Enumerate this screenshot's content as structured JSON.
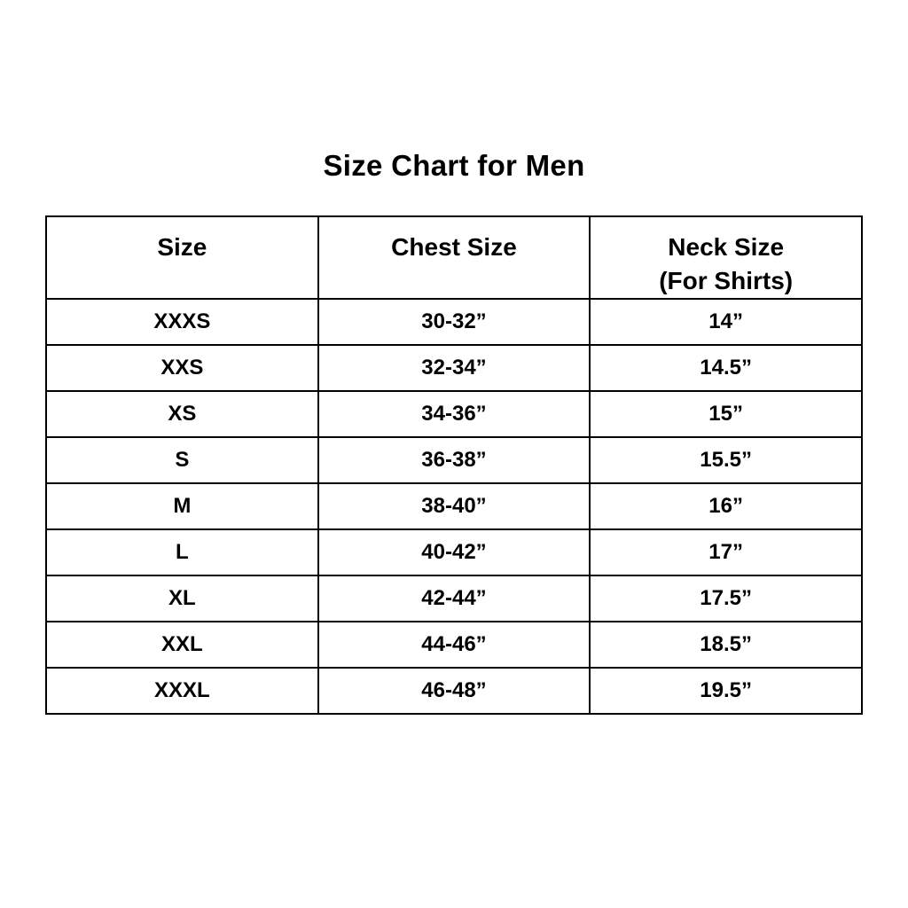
{
  "page": {
    "background_color": "#ffffff",
    "text_color": "#000000",
    "border_color": "#000000"
  },
  "title": "Size Chart for Men",
  "table": {
    "headers": [
      {
        "label": "Size",
        "sublabel": ""
      },
      {
        "label": "Chest Size",
        "sublabel": ""
      },
      {
        "label": "Neck Size",
        "sublabel": "(For Shirts)"
      }
    ]
  },
  "chart_data": {
    "type": "table",
    "title": "Size Chart for Men",
    "columns": [
      "Size",
      "Chest Size",
      "Neck Size (For Shirts)"
    ],
    "rows": [
      [
        "XXXS",
        "30-32”",
        "14”"
      ],
      [
        "XXS",
        "32-34”",
        "14.5”"
      ],
      [
        "XS",
        "34-36”",
        "15”"
      ],
      [
        "S",
        "36-38”",
        "15.5”"
      ],
      [
        "M",
        "38-40”",
        "16”"
      ],
      [
        "L",
        "40-42”",
        "17”"
      ],
      [
        "XL",
        "42-44”",
        "17.5”"
      ],
      [
        "XXL",
        "44-46”",
        "18.5”"
      ],
      [
        "XXXL",
        "46-48”",
        "19.5”"
      ]
    ],
    "layout": {
      "grid": true,
      "title_position": "top-center",
      "columns_equal_width": true
    }
  }
}
